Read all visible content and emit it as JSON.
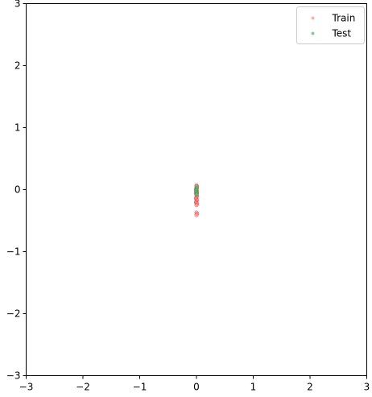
{
  "chart_data": {
    "type": "scatter",
    "xlim": [
      -3,
      3
    ],
    "ylim": [
      -3,
      3
    ],
    "xticks": [
      "−3",
      "−2",
      "−1",
      "0",
      "1",
      "2",
      "3"
    ],
    "yticks": [
      "−3",
      "−2",
      "−1",
      "0",
      "1",
      "2",
      "3"
    ],
    "grid": false,
    "legend_position": "top-right",
    "series": [
      {
        "name": "Train",
        "color": "#ff9999",
        "points": [
          [
            0.0,
            0.07
          ],
          [
            0.01,
            0.05
          ],
          [
            0.0,
            0.03
          ],
          [
            -0.01,
            0.01
          ],
          [
            0.0,
            -0.01
          ],
          [
            0.01,
            -0.03
          ],
          [
            0.0,
            -0.05
          ],
          [
            -0.01,
            -0.06
          ],
          [
            0.0,
            -0.08
          ],
          [
            0.01,
            -0.1
          ],
          [
            0.0,
            -0.12
          ],
          [
            -0.01,
            -0.14
          ],
          [
            0.0,
            -0.15
          ],
          [
            0.01,
            -0.17
          ],
          [
            0.0,
            -0.19
          ],
          [
            -0.01,
            -0.2
          ],
          [
            0.0,
            -0.22
          ],
          [
            0.01,
            -0.23
          ],
          [
            0.0,
            -0.25
          ],
          [
            0.0,
            -0.37
          ],
          [
            0.01,
            -0.39
          ],
          [
            0.0,
            -0.41
          ]
        ]
      },
      {
        "name": "Test",
        "color": "#66bb88",
        "points": [
          [
            0.0,
            0.05
          ],
          [
            0.01,
            0.02
          ],
          [
            0.0,
            0.0
          ],
          [
            -0.01,
            -0.02
          ],
          [
            0.0,
            -0.04
          ],
          [
            0.01,
            -0.06
          ],
          [
            0.0,
            -0.08
          ]
        ]
      }
    ]
  }
}
